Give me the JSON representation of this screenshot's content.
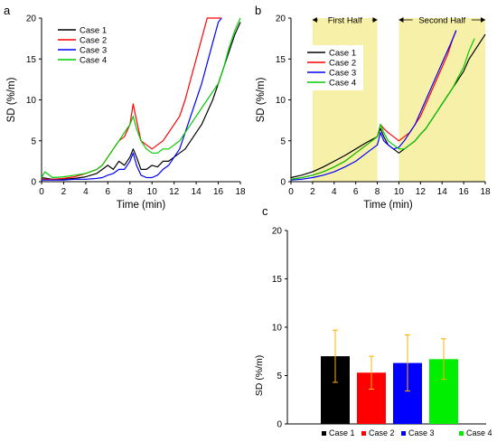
{
  "panels": {
    "a": {
      "letter": "a",
      "xlabel": "Time (min)",
      "ylabel": "SD (%/m)",
      "xticks": [
        "0",
        "2",
        "4",
        "6",
        "8",
        "10",
        "12",
        "14",
        "16",
        "18"
      ],
      "yticks": [
        "0",
        "5",
        "10",
        "15",
        "20"
      ]
    },
    "b": {
      "letter": "b",
      "xlabel": "Time (min)",
      "ylabel": "SD (%/m)",
      "xticks": [
        "0",
        "2",
        "4",
        "6",
        "8",
        "10",
        "12",
        "14",
        "16",
        "18"
      ],
      "yticks": [
        "0",
        "5",
        "10",
        "15",
        "20"
      ],
      "first_half_label": "First Half",
      "second_half_label": "Second Half"
    },
    "c": {
      "letter": "c",
      "ylabel": "SD (%/m)",
      "yticks": [
        "0",
        "5",
        "10",
        "15",
        "20"
      ]
    }
  },
  "chart_data": [
    {
      "panel": "a",
      "type": "line",
      "xlabel": "Time (min)",
      "ylabel": "SD (%/m)",
      "xlim": [
        0,
        18
      ],
      "ylim": [
        0,
        20
      ],
      "grid": false,
      "legend_position": "top-left",
      "series": [
        {
          "name": "Case 1",
          "color": "#000000",
          "x": [
            0,
            1,
            2,
            3,
            4,
            5,
            5.5,
            6,
            6.5,
            7,
            7.5,
            8,
            8.3,
            8.6,
            9,
            9.5,
            10,
            10.5,
            11,
            11.5,
            12,
            12.5,
            13,
            13.5,
            14,
            14.5,
            15,
            15.5,
            16,
            16.5,
            17,
            17.5,
            18
          ],
          "y": [
            0.5,
            0.3,
            0.3,
            0.4,
            0.6,
            1.0,
            1.5,
            2.0,
            1.5,
            2.5,
            2.0,
            3.0,
            4.0,
            3.0,
            1.5,
            1.5,
            2.0,
            1.8,
            2.5,
            2.5,
            3.0,
            3.5,
            4.0,
            5.0,
            6.0,
            7.0,
            8.5,
            10.0,
            12.0,
            14.0,
            16.0,
            18.0,
            19.5
          ]
        },
        {
          "name": "Case 2",
          "color": "#ff0000",
          "x": [
            0,
            1,
            2,
            3,
            4,
            5,
            5.5,
            6,
            6.5,
            7,
            7.5,
            8,
            8.3,
            8.6,
            9,
            9.5,
            10,
            10.5,
            11,
            11.5,
            12,
            12.5,
            13,
            13.5,
            14,
            14.5,
            15,
            15.5,
            16,
            16.3
          ],
          "y": [
            0.3,
            0.3,
            0.4,
            0.6,
            1.0,
            1.5,
            2.0,
            3.0,
            4.0,
            5.0,
            5.5,
            7.0,
            9.5,
            7.5,
            5.0,
            4.5,
            4.0,
            4.5,
            5.0,
            6.0,
            7.0,
            8.0,
            10.0,
            12.5,
            15.0,
            17.5,
            20.0,
            20.0,
            20.0,
            20.0
          ]
        },
        {
          "name": "Case 3",
          "color": "#0000ff",
          "x": [
            0,
            1,
            2,
            3,
            4,
            5,
            5.5,
            6,
            6.5,
            7,
            7.5,
            8,
            8.3,
            8.6,
            9,
            9.5,
            10,
            10.5,
            11,
            11.5,
            12,
            12.5,
            13,
            13.5,
            14,
            14.5,
            15,
            15.5,
            16,
            16.3
          ],
          "y": [
            0.2,
            0.2,
            0.2,
            0.3,
            0.3,
            0.4,
            0.5,
            0.8,
            1.0,
            1.5,
            1.5,
            2.5,
            3.5,
            2.0,
            0.8,
            0.5,
            0.5,
            0.8,
            1.5,
            2.0,
            3.0,
            4.0,
            6.0,
            8.0,
            10.0,
            12.0,
            14.5,
            17.0,
            19.5,
            20.0
          ]
        },
        {
          "name": "Case 4",
          "color": "#00cc00",
          "x": [
            0,
            0.3,
            1,
            2,
            3,
            4,
            5,
            5.5,
            6,
            6.5,
            7,
            7.5,
            8,
            8.3,
            8.6,
            9,
            9.5,
            10,
            10.5,
            11,
            11.5,
            12,
            12.5,
            13,
            13.5,
            14,
            14.5,
            15,
            15.5,
            16,
            16.5,
            17,
            17.5,
            18
          ],
          "y": [
            0.5,
            1.2,
            0.5,
            0.6,
            0.8,
            1.0,
            1.5,
            2.0,
            3.0,
            4.0,
            5.0,
            6.0,
            7.0,
            8.0,
            6.5,
            5.0,
            4.0,
            3.5,
            3.5,
            4.0,
            4.0,
            4.5,
            5.0,
            6.0,
            7.0,
            8.0,
            9.0,
            10.0,
            11.0,
            12.0,
            14.0,
            16.5,
            18.5,
            20.0
          ]
        }
      ]
    },
    {
      "panel": "b",
      "type": "line",
      "xlabel": "Time (min)",
      "ylabel": "SD (%/m)",
      "xlim": [
        0,
        18
      ],
      "ylim": [
        0,
        20
      ],
      "grid": false,
      "legend_position": "top-center",
      "shaded_regions": [
        {
          "label": "First Half",
          "x": [
            2,
            8
          ],
          "color": "#f7f0a8"
        },
        {
          "label": "Second Half",
          "x": [
            10,
            18
          ],
          "color": "#f7f0a8"
        }
      ],
      "series": [
        {
          "name": "Case 1",
          "color": "#000000",
          "x": [
            0,
            1,
            2,
            3,
            4,
            5,
            6,
            7,
            8,
            8.3,
            8.6,
            9,
            9.5,
            10,
            10.5,
            11,
            11.5,
            12,
            12.5,
            13,
            13.5,
            14,
            14.5,
            15,
            15.5,
            16,
            16.5,
            17,
            17.5,
            18
          ],
          "y": [
            0.5,
            0.8,
            1.2,
            1.8,
            2.5,
            3.2,
            4.0,
            4.8,
            5.5,
            6.5,
            5.5,
            4.5,
            4.0,
            3.5,
            4.0,
            4.5,
            5.0,
            5.8,
            6.5,
            7.5,
            8.5,
            9.5,
            10.5,
            11.5,
            12.5,
            13.5,
            15.0,
            16.0,
            17.0,
            18.0
          ]
        },
        {
          "name": "Case 2",
          "color": "#ff0000",
          "x": [
            0,
            1,
            2,
            3,
            4,
            5,
            6,
            7,
            8,
            8.3,
            8.6,
            9,
            9.5,
            10,
            10.5,
            11,
            11.5,
            12,
            12.5,
            13,
            13.5,
            14,
            14.5,
            15,
            15.3
          ],
          "y": [
            0.3,
            0.5,
            0.8,
            1.2,
            1.8,
            2.5,
            3.5,
            4.5,
            5.5,
            7.0,
            6.5,
            6.0,
            5.5,
            5.0,
            5.5,
            6.0,
            7.0,
            8.0,
            9.5,
            11.0,
            12.5,
            14.0,
            15.5,
            17.5,
            18.5
          ]
        },
        {
          "name": "Case 3",
          "color": "#0000ff",
          "x": [
            0,
            1,
            2,
            3,
            4,
            5,
            6,
            7,
            8,
            8.3,
            8.6,
            9,
            9.5,
            10,
            10.5,
            11,
            11.5,
            12,
            12.5,
            13,
            13.5,
            14,
            14.5,
            15,
            15.3
          ],
          "y": [
            0.2,
            0.3,
            0.5,
            0.8,
            1.2,
            1.8,
            2.5,
            3.5,
            4.5,
            6.0,
            5.0,
            4.5,
            4.0,
            4.2,
            5.0,
            6.0,
            7.0,
            8.5,
            10.0,
            11.5,
            13.0,
            14.5,
            16.0,
            17.5,
            18.5
          ]
        },
        {
          "name": "Case 4",
          "color": "#00cc00",
          "x": [
            0,
            1,
            2,
            3,
            4,
            5,
            6,
            7,
            8,
            8.3,
            8.6,
            9,
            9.5,
            10,
            10.5,
            11,
            11.5,
            12,
            12.5,
            13,
            13.5,
            14,
            14.5,
            15,
            15.5,
            16,
            16.5,
            17
          ],
          "y": [
            0.3,
            0.5,
            0.8,
            1.2,
            1.8,
            2.5,
            3.5,
            4.5,
            5.5,
            7.0,
            6.0,
            5.0,
            4.5,
            4.0,
            4.0,
            4.5,
            5.0,
            5.8,
            6.5,
            7.5,
            8.5,
            9.5,
            10.5,
            11.5,
            12.8,
            14.0,
            16.0,
            17.5
          ]
        }
      ]
    },
    {
      "panel": "c",
      "type": "bar",
      "ylabel": "SD (%/m)",
      "ylim": [
        0,
        20
      ],
      "grid": false,
      "legend_position": "bottom",
      "categories": [
        "Case 1",
        "Case 2",
        "Case 3",
        "Case 4"
      ],
      "values": [
        7.0,
        5.3,
        6.3,
        6.7
      ],
      "errors": [
        2.7,
        1.7,
        2.9,
        2.1
      ],
      "colors": [
        "#000000",
        "#ff0000",
        "#0000ff",
        "#00ee00"
      ],
      "error_color": "#ffb000"
    }
  ]
}
